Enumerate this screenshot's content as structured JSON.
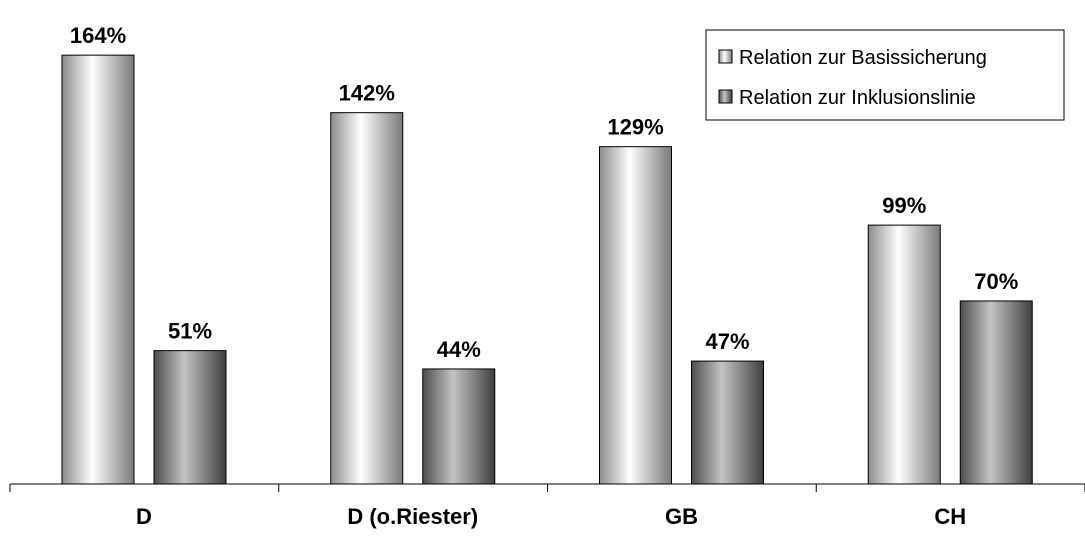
{
  "chart_data": {
    "type": "bar",
    "categories": [
      "D",
      "D (o.Riester)",
      "GB",
      "CH"
    ],
    "series": [
      {
        "name": "Relation zur Basissicherung",
        "values": [
          164,
          142,
          129,
          99
        ],
        "labels": [
          "164%",
          "142%",
          "129%",
          "99%"
        ],
        "style": "light-cylinder"
      },
      {
        "name": "Relation zur Inklusionslinie",
        "values": [
          51,
          44,
          47,
          70
        ],
        "labels": [
          "51%",
          "44%",
          "47%",
          "70%"
        ],
        "style": "dark-cylinder"
      }
    ],
    "ylim": [
      0,
      175
    ],
    "grid": false,
    "legend_position": "top-right",
    "colors": {
      "light_edge": "#8c8c8c",
      "light_center": "#ffffff",
      "dark_edge": "#4d4d4d",
      "dark_center": "#c4c4c4",
      "axis": "#000000"
    }
  }
}
